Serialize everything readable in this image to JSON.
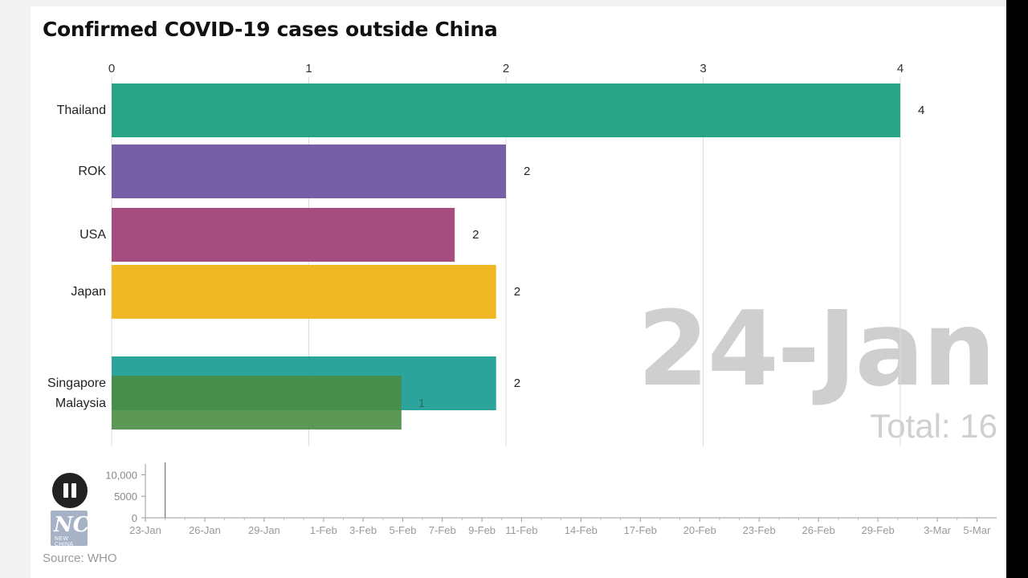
{
  "title": "Confirmed COVID-19 cases outside China",
  "date": "24-Jan",
  "total_label": "Total:",
  "total_value": "16",
  "source": "Source: WHO",
  "logo": {
    "text": "NC",
    "sub": "NEW CHINA"
  },
  "controls": {
    "play_state": "pause",
    "icon": "pause-icon"
  },
  "chart_data": [
    {
      "type": "bar",
      "orientation": "horizontal",
      "title": "Confirmed COVID-19 cases outside China",
      "xlim": [
        0,
        4
      ],
      "x_ticks": [
        "0",
        "1",
        "2",
        "3",
        "4"
      ],
      "grid": true,
      "axis_position": "top",
      "bars": [
        {
          "category": "Thailand",
          "value": 4,
          "display_value": "4",
          "color": "#1b9e7e"
        },
        {
          "category": "ROK",
          "value": 2,
          "display_value": "2",
          "color": "#6e55a0"
        },
        {
          "category": "USA",
          "value": 1.74,
          "display_value": "2",
          "color": "#9e4276"
        },
        {
          "category": "Japan",
          "value": 1.95,
          "display_value": "2",
          "color": "#f0b418"
        },
        {
          "category": "Singapore",
          "value": 1.95,
          "display_value": "2",
          "color": "#149b91"
        },
        {
          "category": "Malaysia",
          "value": 1.47,
          "display_value": "1",
          "color": "#4a8c44"
        }
      ]
    },
    {
      "type": "line",
      "series_values": [
        0
      ],
      "ylim": [
        0,
        12500
      ],
      "y_ticks": [
        "10,000",
        "5000",
        "0"
      ],
      "x_ticks": [
        "23-Jan",
        "26-Jan",
        "29-Jan",
        "1-Feb",
        "3-Feb",
        "5-Feb",
        "7-Feb",
        "9-Feb",
        "11-Feb",
        "14-Feb",
        "17-Feb",
        "20-Feb",
        "23-Feb",
        "26-Feb",
        "29-Feb",
        "3-Mar",
        "5-Mar"
      ],
      "x_dates": [
        "2020-01-23",
        "2020-01-26",
        "2020-01-29",
        "2020-02-01",
        "2020-02-03",
        "2020-02-05",
        "2020-02-07",
        "2020-02-09",
        "2020-02-11",
        "2020-02-14",
        "2020-02-17",
        "2020-02-20",
        "2020-02-23",
        "2020-02-26",
        "2020-02-29",
        "2020-03-03",
        "2020-03-05"
      ],
      "xlim": [
        "2020-01-23",
        "2020-03-06"
      ],
      "current_date": "2020-01-24"
    }
  ]
}
